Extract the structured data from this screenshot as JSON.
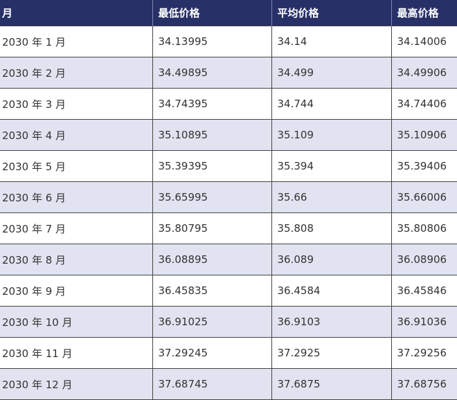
{
  "table": {
    "header": [
      "月",
      "最低价格",
      "平均价格",
      "最高价格"
    ],
    "rows": [
      [
        "2030 年 1 月",
        "34.13995",
        "34.14",
        "34.14006"
      ],
      [
        "2030 年 2 月",
        "34.49895",
        "34.499",
        "34.49906"
      ],
      [
        "2030 年 3 月",
        "34.74395",
        "34.744",
        "34.74406"
      ],
      [
        "2030 年 4 月",
        "35.10895",
        "35.109",
        "35.10906"
      ],
      [
        "2030 年 5 月",
        "35.39395",
        "35.394",
        "35.39406"
      ],
      [
        "2030 年 6 月",
        "35.65995",
        "35.66",
        "35.66006"
      ],
      [
        "2030 年 7 月",
        "35.80795",
        "35.808",
        "35.80806"
      ],
      [
        "2030 年 8 月",
        "36.08895",
        "36.089",
        "36.08906"
      ],
      [
        "2030 年 9 月",
        "36.45835",
        "36.4584",
        "36.45846"
      ],
      [
        "2030 年 10 月",
        "36.91025",
        "36.9103",
        "36.91036"
      ],
      [
        "2030 年 11 月",
        "37.29245",
        "37.2925",
        "37.29256"
      ],
      [
        "2030 年 12 月",
        "37.68745",
        "37.6875",
        "37.68756"
      ]
    ]
  }
}
